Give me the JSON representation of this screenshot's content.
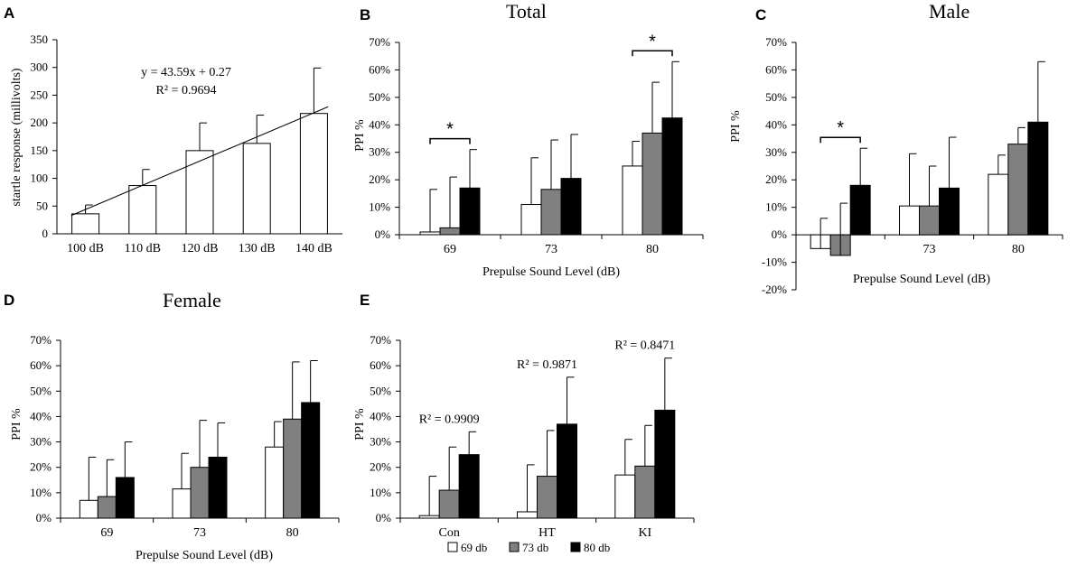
{
  "figure": {
    "legend": {
      "entries": [
        {
          "label": "69 db",
          "color": "#ffffff"
        },
        {
          "label": "73 db",
          "color": "#808080"
        },
        {
          "label": "80 db",
          "color": "#000000"
        }
      ]
    }
  },
  "chart_data": [
    {
      "id": "A",
      "letter": "A",
      "type": "bar",
      "title": "",
      "xlabel": "",
      "ylabel": "startle response (millivolts)",
      "ylim": [
        0,
        350
      ],
      "yticks": [
        0,
        50,
        100,
        150,
        200,
        250,
        300,
        350
      ],
      "ytick_labels": [
        "0",
        "50",
        "100",
        "150",
        "200",
        "250",
        "300",
        "350"
      ],
      "categories": [
        "100 dB",
        "110 dB",
        "120 dB",
        "130 dB",
        "140 dB"
      ],
      "series": [
        {
          "name": "startle response",
          "color": "#ffffff",
          "values": [
            36,
            87,
            150,
            163,
            217
          ],
          "errors": [
            16,
            29,
            50,
            51,
            82
          ]
        }
      ],
      "trendline": {
        "slope": 43.59,
        "intercept": 0.27
      },
      "annotations": [
        "y = 43.59x + 0.27",
        "R² = 0.9694"
      ]
    },
    {
      "id": "B",
      "letter": "B",
      "type": "bar",
      "title": "Total",
      "xlabel": "Prepulse Sound Level (dB)",
      "ylabel": "PPI %",
      "ylim": [
        0,
        70
      ],
      "yticks": [
        0,
        10,
        20,
        30,
        40,
        50,
        60,
        70
      ],
      "ytick_labels": [
        "0%",
        "10%",
        "20%",
        "30%",
        "40%",
        "50%",
        "60%",
        "70%"
      ],
      "categories": [
        "69",
        "73",
        "80"
      ],
      "series": [
        {
          "name": "69 db",
          "color": "#ffffff",
          "values": [
            1,
            11,
            25
          ],
          "errors": [
            15.5,
            17,
            9
          ]
        },
        {
          "name": "73 db",
          "color": "#808080",
          "values": [
            2.5,
            16.5,
            37
          ],
          "errors": [
            18.5,
            18,
            18.5
          ]
        },
        {
          "name": "80 db",
          "color": "#000000",
          "values": [
            17,
            20.5,
            42.5
          ],
          "errors": [
            14,
            16,
            20.5
          ]
        }
      ],
      "significance": [
        {
          "category": 0,
          "label": "*"
        },
        {
          "category": 2,
          "label": "*"
        }
      ]
    },
    {
      "id": "C",
      "letter": "C",
      "type": "bar",
      "title": "Male",
      "xlabel": "Prepulse Sound Level (dB)",
      "ylabel": "PPI %",
      "ylim": [
        -20,
        70
      ],
      "yticks": [
        -20,
        -10,
        0,
        10,
        20,
        30,
        40,
        50,
        60,
        70
      ],
      "ytick_labels": [
        "-20%",
        "-10%",
        "0%",
        "10%",
        "20%",
        "30%",
        "40%",
        "50%",
        "60%",
        "70%"
      ],
      "categories": [
        "69",
        "73",
        "80"
      ],
      "series": [
        {
          "name": "69 db",
          "color": "#ffffff",
          "values": [
            -5,
            10.5,
            22
          ],
          "errors": [
            11,
            19,
            7
          ]
        },
        {
          "name": "73 db",
          "color": "#808080",
          "values": [
            -7.5,
            10.5,
            33
          ],
          "errors": [
            19,
            14.5,
            6
          ]
        },
        {
          "name": "80 db",
          "color": "#000000",
          "values": [
            18,
            17,
            41
          ],
          "errors": [
            13.5,
            18.5,
            22
          ]
        }
      ],
      "significance": [
        {
          "category": 0,
          "label": "*"
        }
      ]
    },
    {
      "id": "D",
      "letter": "D",
      "type": "bar",
      "title": "Female",
      "xlabel": "Prepulse Sound Level (dB)",
      "ylabel": "PPI %",
      "ylim": [
        0,
        70
      ],
      "yticks": [
        0,
        10,
        20,
        30,
        40,
        50,
        60,
        70
      ],
      "ytick_labels": [
        "0%",
        "10%",
        "20%",
        "30%",
        "40%",
        "50%",
        "60%",
        "70%"
      ],
      "categories": [
        "69",
        "73",
        "80"
      ],
      "series": [
        {
          "name": "69 db",
          "color": "#ffffff",
          "values": [
            7,
            11.5,
            28
          ],
          "errors": [
            17,
            14,
            10
          ]
        },
        {
          "name": "73 db",
          "color": "#808080",
          "values": [
            8.5,
            20,
            39
          ],
          "errors": [
            14.5,
            18.5,
            22.5
          ]
        },
        {
          "name": "80 db",
          "color": "#000000",
          "values": [
            16,
            24,
            45.5
          ],
          "errors": [
            14,
            13.5,
            16.5
          ]
        }
      ],
      "significance": []
    },
    {
      "id": "E",
      "letter": "E",
      "type": "bar",
      "title": "",
      "xlabel": "",
      "ylabel": "PPI %",
      "ylim": [
        0,
        70
      ],
      "yticks": [
        0,
        10,
        20,
        30,
        40,
        50,
        60,
        70
      ],
      "ytick_labels": [
        "0%",
        "10%",
        "20%",
        "30%",
        "40%",
        "50%",
        "60%",
        "70%"
      ],
      "categories": [
        "Con",
        "HT",
        "KI"
      ],
      "series": [
        {
          "name": "69 db",
          "color": "#ffffff",
          "values": [
            1,
            2.5,
            17
          ],
          "errors": [
            15.5,
            18.5,
            14
          ]
        },
        {
          "name": "73 db",
          "color": "#808080",
          "values": [
            11,
            16.5,
            20.5
          ],
          "errors": [
            17,
            18,
            16
          ]
        },
        {
          "name": "80 db",
          "color": "#000000",
          "values": [
            25,
            37,
            42.5
          ],
          "errors": [
            9,
            18.5,
            20.5
          ]
        }
      ],
      "r2": [
        {
          "category": 0,
          "label": "R² = 0.9909"
        },
        {
          "category": 1,
          "label": "R² = 0.9871"
        },
        {
          "category": 2,
          "label": "R² = 0.8471"
        }
      ],
      "show_legend": true
    }
  ]
}
